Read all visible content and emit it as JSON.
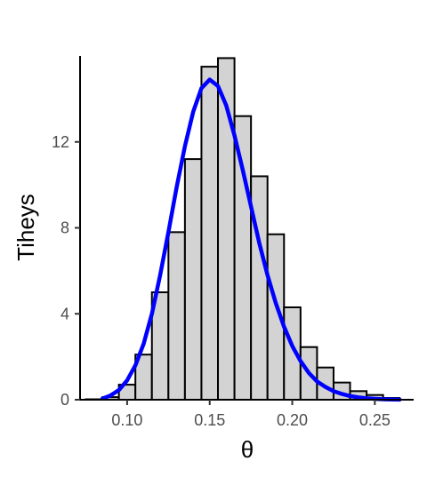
{
  "chart_data": {
    "type": "bar",
    "title": "",
    "xlabel": "θ",
    "ylabel": "Tiheys",
    "xlim": [
      0.0715,
      0.2735
    ],
    "ylim": [
      0,
      16
    ],
    "x_ticks": [
      0.1,
      0.15,
      0.2,
      0.25
    ],
    "x_tick_labels": [
      "0.10",
      "0.15",
      "0.20",
      "0.25"
    ],
    "y_ticks": [
      0,
      4,
      8,
      12
    ],
    "y_tick_labels": [
      "0",
      "4",
      "8",
      "12"
    ],
    "grid": false,
    "legend": "none",
    "histogram": {
      "bin_width": 0.01,
      "bin_starts": [
        0.075,
        0.085,
        0.095,
        0.105,
        0.115,
        0.125,
        0.135,
        0.145,
        0.155,
        0.165,
        0.175,
        0.185,
        0.195,
        0.205,
        0.215,
        0.225,
        0.235,
        0.245,
        0.255
      ],
      "densities": [
        0.02,
        0.12,
        0.7,
        2.1,
        5.0,
        7.8,
        11.2,
        15.5,
        15.9,
        13.2,
        10.4,
        7.7,
        4.3,
        2.45,
        1.5,
        0.8,
        0.4,
        0.22,
        0.08
      ],
      "fill": "#d3d3d3",
      "stroke": "#000000"
    },
    "density_curve": {
      "x": [
        0.085,
        0.09,
        0.095,
        0.1,
        0.105,
        0.11,
        0.115,
        0.12,
        0.125,
        0.13,
        0.135,
        0.14,
        0.145,
        0.15,
        0.155,
        0.16,
        0.165,
        0.17,
        0.175,
        0.18,
        0.185,
        0.19,
        0.195,
        0.2,
        0.205,
        0.21,
        0.215,
        0.22,
        0.225,
        0.23,
        0.235,
        0.24,
        0.245,
        0.25,
        0.255,
        0.26,
        0.265
      ],
      "y": [
        0.05,
        0.2,
        0.45,
        0.9,
        1.6,
        2.6,
        4.0,
        5.8,
        7.8,
        9.9,
        11.8,
        13.4,
        14.5,
        14.9,
        14.6,
        13.7,
        12.3,
        10.7,
        9.0,
        7.3,
        5.8,
        4.5,
        3.4,
        2.5,
        1.8,
        1.25,
        0.85,
        0.6,
        0.4,
        0.27,
        0.17,
        0.11,
        0.07,
        0.04,
        0.02,
        0.01,
        0.005
      ],
      "color": "#0000ff"
    }
  }
}
